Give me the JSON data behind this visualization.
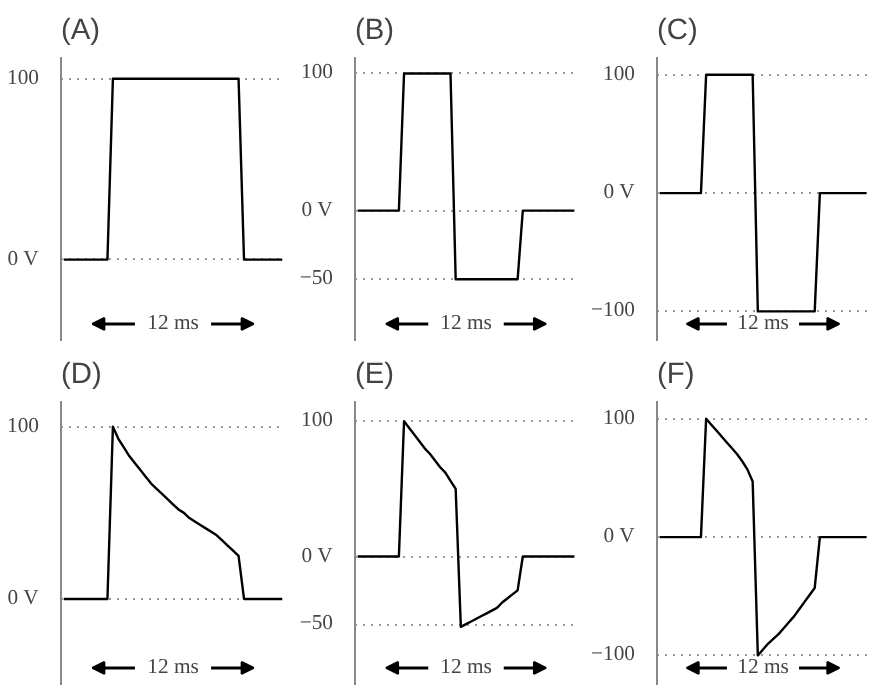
{
  "chart_data": [
    {
      "type": "line",
      "title": "(A)",
      "categories": [
        null,
        null,
        null,
        null,
        null,
        null,
        null,
        null,
        null,
        null,
        null,
        null,
        null,
        null,
        null,
        null,
        null,
        null,
        null,
        null,
        null,
        null,
        null,
        null,
        null,
        null,
        null,
        null,
        null,
        null,
        null,
        null,
        null,
        null,
        null,
        null,
        null,
        null,
        null,
        null,
        null
      ],
      "ylim": [
        -45,
        112
      ],
      "yticks": [
        {
          "value": 0,
          "label": "0 V"
        },
        100
      ],
      "tick_labels": "y",
      "grid": "y",
      "annotations": [
        "12 ms"
      ],
      "series": [
        {
          "color": "#000000",
          "values": [
            0,
            0,
            0,
            0,
            0,
            0,
            0,
            0,
            0,
            100,
            100,
            100,
            100,
            100,
            100,
            100,
            100,
            100,
            100,
            100,
            100,
            100,
            100,
            100,
            100,
            100,
            100,
            100,
            100,
            100,
            100,
            100,
            100,
            0,
            0,
            0,
            0,
            0,
            0,
            0,
            0
          ]
        }
      ]
    },
    {
      "type": "line",
      "title": "(B)",
      "categories": [
        null,
        null,
        null,
        null,
        null,
        null,
        null,
        null,
        null,
        null,
        null,
        null,
        null,
        null,
        null,
        null,
        null,
        null,
        null,
        null,
        null,
        null,
        null,
        null,
        null,
        null,
        null,
        null,
        null,
        null,
        null,
        null,
        null,
        null,
        null,
        null,
        null,
        null,
        null,
        null,
        null,
        null,
        null
      ],
      "ylim": [
        -95,
        112
      ],
      "yticks": [
        {
          "value": -50,
          "label": "−50"
        },
        {
          "value": 0,
          "label": "0 V"
        },
        100
      ],
      "tick_labels": "y",
      "grid": "y",
      "annotations": [
        "12 ms"
      ],
      "series": [
        {
          "color": "#000000",
          "values": [
            0,
            0,
            0,
            0,
            0,
            0,
            0,
            0,
            0,
            100,
            100,
            100,
            100,
            100,
            100,
            100,
            100,
            100,
            100,
            -50,
            -50,
            -50,
            -50,
            -50,
            -50,
            -50,
            -50,
            -50,
            -50,
            -50,
            -50,
            -50,
            0,
            0,
            0,
            0,
            0,
            0,
            0,
            0,
            0,
            0,
            0
          ]
        }
      ]
    },
    {
      "type": "line",
      "title": "(C)",
      "categories": [
        null,
        null,
        null,
        null,
        null,
        null,
        null,
        null,
        null,
        null,
        null,
        null,
        null,
        null,
        null,
        null,
        null,
        null,
        null,
        null,
        null,
        null,
        null,
        null,
        null,
        null,
        null,
        null,
        null,
        null,
        null,
        null,
        null,
        null,
        null,
        null,
        null,
        null,
        null,
        null,
        null
      ],
      "ylim": [
        -125,
        115
      ],
      "yticks": [
        {
          "value": -100,
          "label": "−100"
        },
        {
          "value": 0,
          "label": "0 V"
        },
        100
      ],
      "tick_labels": "y",
      "grid": "y",
      "annotations": [
        "12 ms"
      ],
      "series": [
        {
          "color": "#000000",
          "values": [
            0,
            0,
            0,
            0,
            0,
            0,
            0,
            0,
            0,
            100,
            100,
            100,
            100,
            100,
            100,
            100,
            100,
            100,
            100,
            -100,
            -100,
            -100,
            -100,
            -100,
            -100,
            -100,
            -100,
            -100,
            -100,
            -100,
            -100,
            0,
            0,
            0,
            0,
            0,
            0,
            0,
            0,
            0,
            0
          ]
        }
      ]
    },
    {
      "type": "line",
      "title": "(D)",
      "categories": [
        null,
        null,
        null,
        null,
        null,
        null,
        null,
        null,
        null,
        null,
        null,
        null,
        null,
        null,
        null,
        null,
        null,
        null,
        null,
        null,
        null,
        null,
        null,
        null,
        null,
        null,
        null,
        null,
        null,
        null,
        null,
        null,
        null,
        null,
        null,
        null,
        null,
        null,
        null,
        null,
        null
      ],
      "ylim": [
        -50,
        115
      ],
      "yticks": [
        {
          "value": 0,
          "label": "0 V"
        },
        100
      ],
      "tick_labels": "y",
      "grid": "y",
      "annotations": [
        "12 ms"
      ],
      "series": [
        {
          "color": "#000000",
          "values": [
            0,
            0,
            0,
            0,
            0,
            0,
            0,
            0,
            0,
            100,
            93,
            88,
            83,
            79,
            75,
            71,
            67,
            64,
            61,
            58,
            55,
            52,
            50,
            47,
            45,
            43,
            41,
            39,
            37,
            34,
            31,
            28,
            25,
            0,
            0,
            0,
            0,
            0,
            0,
            0,
            0
          ]
        }
      ]
    },
    {
      "type": "line",
      "title": "(E)",
      "categories": [
        null,
        null,
        null,
        null,
        null,
        null,
        null,
        null,
        null,
        null,
        null,
        null,
        null,
        null,
        null,
        null,
        null,
        null,
        null,
        null,
        null,
        null,
        null,
        null,
        null,
        null,
        null,
        null,
        null,
        null,
        null,
        null,
        null,
        null,
        null,
        null,
        null,
        null,
        null,
        null,
        null,
        null,
        null
      ],
      "ylim": [
        -95,
        115
      ],
      "yticks": [
        {
          "value": -50,
          "label": "−50"
        },
        {
          "value": 0,
          "label": "0 V"
        },
        100
      ],
      "tick_labels": "y",
      "grid": "y",
      "annotations": [
        "12 ms"
      ],
      "series": [
        {
          "color": "#000000",
          "values": [
            0,
            0,
            0,
            0,
            0,
            0,
            0,
            0,
            0,
            100,
            95,
            90,
            85,
            80,
            76,
            71,
            66,
            62,
            56,
            50,
            -52,
            -50,
            -48,
            -46,
            -44,
            -42,
            -40,
            -38,
            -34,
            -31,
            -28,
            -25,
            0,
            0,
            0,
            0,
            0,
            0,
            0,
            0,
            0,
            0,
            0
          ]
        }
      ]
    },
    {
      "type": "line",
      "title": "(F)",
      "categories": [
        null,
        null,
        null,
        null,
        null,
        null,
        null,
        null,
        null,
        null,
        null,
        null,
        null,
        null,
        null,
        null,
        null,
        null,
        null,
        null,
        null,
        null,
        null,
        null,
        null,
        null,
        null,
        null,
        null,
        null,
        null,
        null,
        null,
        null,
        null,
        null,
        null,
        null,
        null,
        null,
        null
      ],
      "ylim": [
        -125,
        115
      ],
      "yticks": [
        {
          "value": -100,
          "label": "−100"
        },
        {
          "value": 0,
          "label": "0 V"
        },
        100
      ],
      "tick_labels": "y",
      "grid": "y",
      "annotations": [
        "12 ms"
      ],
      "series": [
        {
          "color": "#000000",
          "values": [
            0,
            0,
            0,
            0,
            0,
            0,
            0,
            0,
            0,
            100,
            95,
            90,
            85,
            80,
            75,
            70,
            64,
            57,
            47,
            -100,
            -95,
            -90,
            -86,
            -82,
            -77,
            -72,
            -67,
            -61,
            -55,
            -49,
            -43,
            0,
            0,
            0,
            0,
            0,
            0,
            0,
            0,
            0,
            0
          ]
        }
      ]
    }
  ]
}
